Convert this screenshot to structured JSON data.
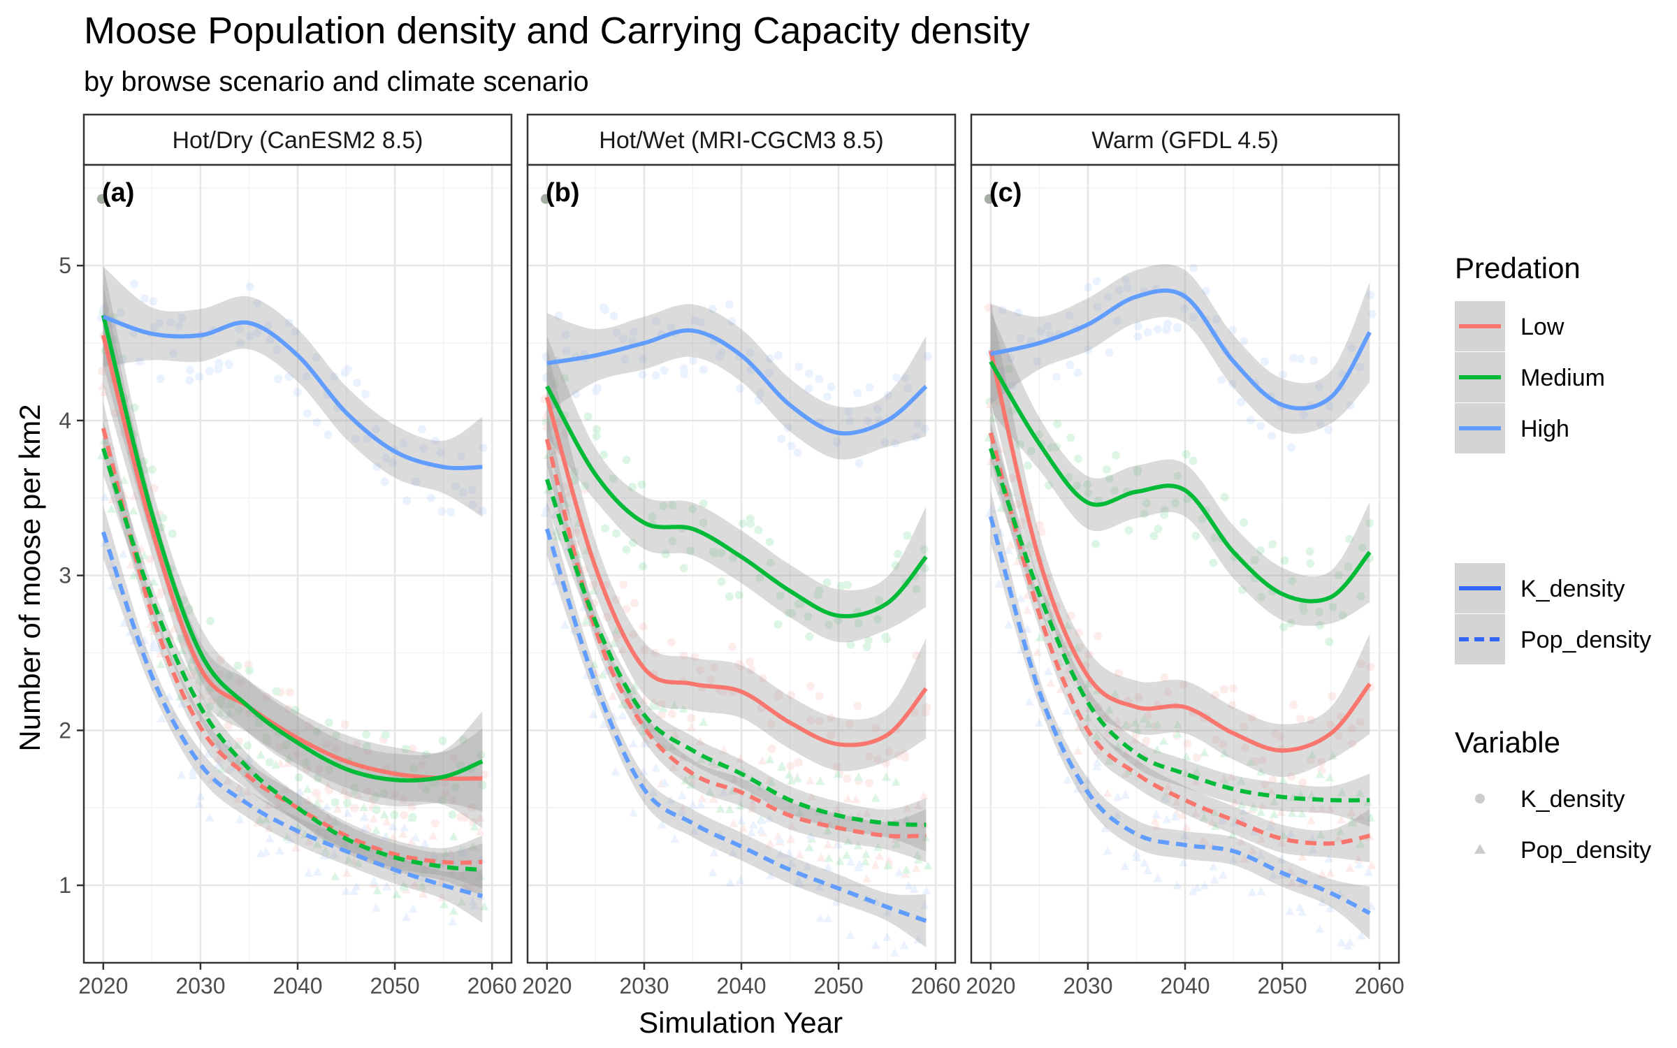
{
  "chart_data": {
    "type": "line",
    "title": "Moose Population density and Carrying Capacity density",
    "subtitle": "by browse scenario and climate scenario",
    "xlabel": "Simulation Year",
    "ylabel": "Number of moose per km2",
    "xlim": [
      2018,
      2062
    ],
    "ylim": [
      0.5,
      5.65
    ],
    "x_ticks": [
      2020,
      2030,
      2040,
      2050,
      2060
    ],
    "y_ticks": [
      1,
      2,
      3,
      4,
      5
    ],
    "grid": true,
    "colors": {
      "Low": "#F8766D",
      "Medium": "#00BA38",
      "High": "#619CFF"
    },
    "legends": [
      {
        "title": "Predation",
        "entries": [
          "Low",
          "Medium",
          "High"
        ]
      },
      {
        "title": "",
        "entries": [
          "K_density",
          "Pop_density"
        ]
      },
      {
        "title": "Variable",
        "entries": [
          "K_density",
          "Pop_density"
        ]
      }
    ],
    "x": [
      2020,
      2025,
      2030,
      2035,
      2040,
      2045,
      2050,
      2055,
      2059
    ],
    "panels": [
      {
        "strip": "Hot/Dry (CanESM2 8.5)",
        "tag": "(a)",
        "series": [
          {
            "predation": "Low",
            "variable": "K_density",
            "values": [
              4.55,
              3.3,
              2.4,
              2.15,
              1.95,
              1.8,
              1.72,
              1.69,
              1.69
            ]
          },
          {
            "predation": "Medium",
            "variable": "K_density",
            "values": [
              4.68,
              3.4,
              2.5,
              2.15,
              1.92,
              1.75,
              1.68,
              1.7,
              1.8
            ]
          },
          {
            "predation": "High",
            "variable": "K_density",
            "values": [
              4.67,
              4.56,
              4.55,
              4.63,
              4.42,
              4.05,
              3.8,
              3.7,
              3.7
            ]
          },
          {
            "predation": "Low",
            "variable": "Pop_density",
            "values": [
              3.95,
              2.75,
              2.02,
              1.7,
              1.5,
              1.32,
              1.2,
              1.15,
              1.15
            ]
          },
          {
            "predation": "Medium",
            "variable": "Pop_density",
            "values": [
              3.82,
              2.85,
              2.15,
              1.75,
              1.5,
              1.3,
              1.18,
              1.12,
              1.1
            ]
          },
          {
            "predation": "High",
            "variable": "Pop_density",
            "values": [
              3.28,
              2.35,
              1.78,
              1.52,
              1.35,
              1.22,
              1.1,
              1.0,
              0.93
            ]
          }
        ]
      },
      {
        "strip": "Hot/Wet (MRI-CGCM3 8.5)",
        "tag": "(b)",
        "series": [
          {
            "predation": "Low",
            "variable": "K_density",
            "values": [
              4.15,
              3.05,
              2.4,
              2.3,
              2.25,
              2.05,
              1.91,
              1.97,
              2.27
            ]
          },
          {
            "predation": "Medium",
            "variable": "K_density",
            "values": [
              4.22,
              3.65,
              3.34,
              3.3,
              3.12,
              2.9,
              2.74,
              2.82,
              3.12
            ]
          },
          {
            "predation": "High",
            "variable": "K_density",
            "values": [
              4.37,
              4.42,
              4.5,
              4.58,
              4.42,
              4.1,
              3.92,
              4.0,
              4.22
            ]
          },
          {
            "predation": "Low",
            "variable": "Pop_density",
            "values": [
              3.88,
              2.65,
              2.02,
              1.72,
              1.6,
              1.45,
              1.37,
              1.32,
              1.32
            ]
          },
          {
            "predation": "Medium",
            "variable": "Pop_density",
            "values": [
              3.62,
              2.7,
              2.1,
              1.87,
              1.72,
              1.55,
              1.45,
              1.4,
              1.39
            ]
          },
          {
            "predation": "High",
            "variable": "Pop_density",
            "values": [
              3.3,
              2.3,
              1.62,
              1.4,
              1.25,
              1.1,
              0.98,
              0.86,
              0.77
            ]
          }
        ]
      },
      {
        "strip": "Warm (GFDL 4.5)",
        "tag": "(c)",
        "series": [
          {
            "predation": "Low",
            "variable": "K_density",
            "values": [
              4.45,
              3.1,
              2.35,
              2.15,
              2.15,
              1.98,
              1.87,
              1.98,
              2.3
            ]
          },
          {
            "predation": "Medium",
            "variable": "K_density",
            "values": [
              4.38,
              3.85,
              3.47,
              3.54,
              3.55,
              3.15,
              2.88,
              2.86,
              3.15
            ]
          },
          {
            "predation": "High",
            "variable": "K_density",
            "values": [
              4.43,
              4.5,
              4.62,
              4.8,
              4.8,
              4.38,
              4.1,
              4.15,
              4.57
            ]
          },
          {
            "predation": "Low",
            "variable": "Pop_density",
            "values": [
              3.92,
              2.75,
              2.0,
              1.72,
              1.55,
              1.42,
              1.3,
              1.27,
              1.32
            ]
          },
          {
            "predation": "Medium",
            "variable": "Pop_density",
            "values": [
              3.82,
              2.88,
              2.18,
              1.85,
              1.72,
              1.62,
              1.57,
              1.55,
              1.55
            ]
          },
          {
            "predation": "High",
            "variable": "Pop_density",
            "values": [
              3.38,
              2.25,
              1.6,
              1.33,
              1.26,
              1.22,
              1.08,
              0.95,
              0.82
            ]
          }
        ]
      }
    ]
  }
}
